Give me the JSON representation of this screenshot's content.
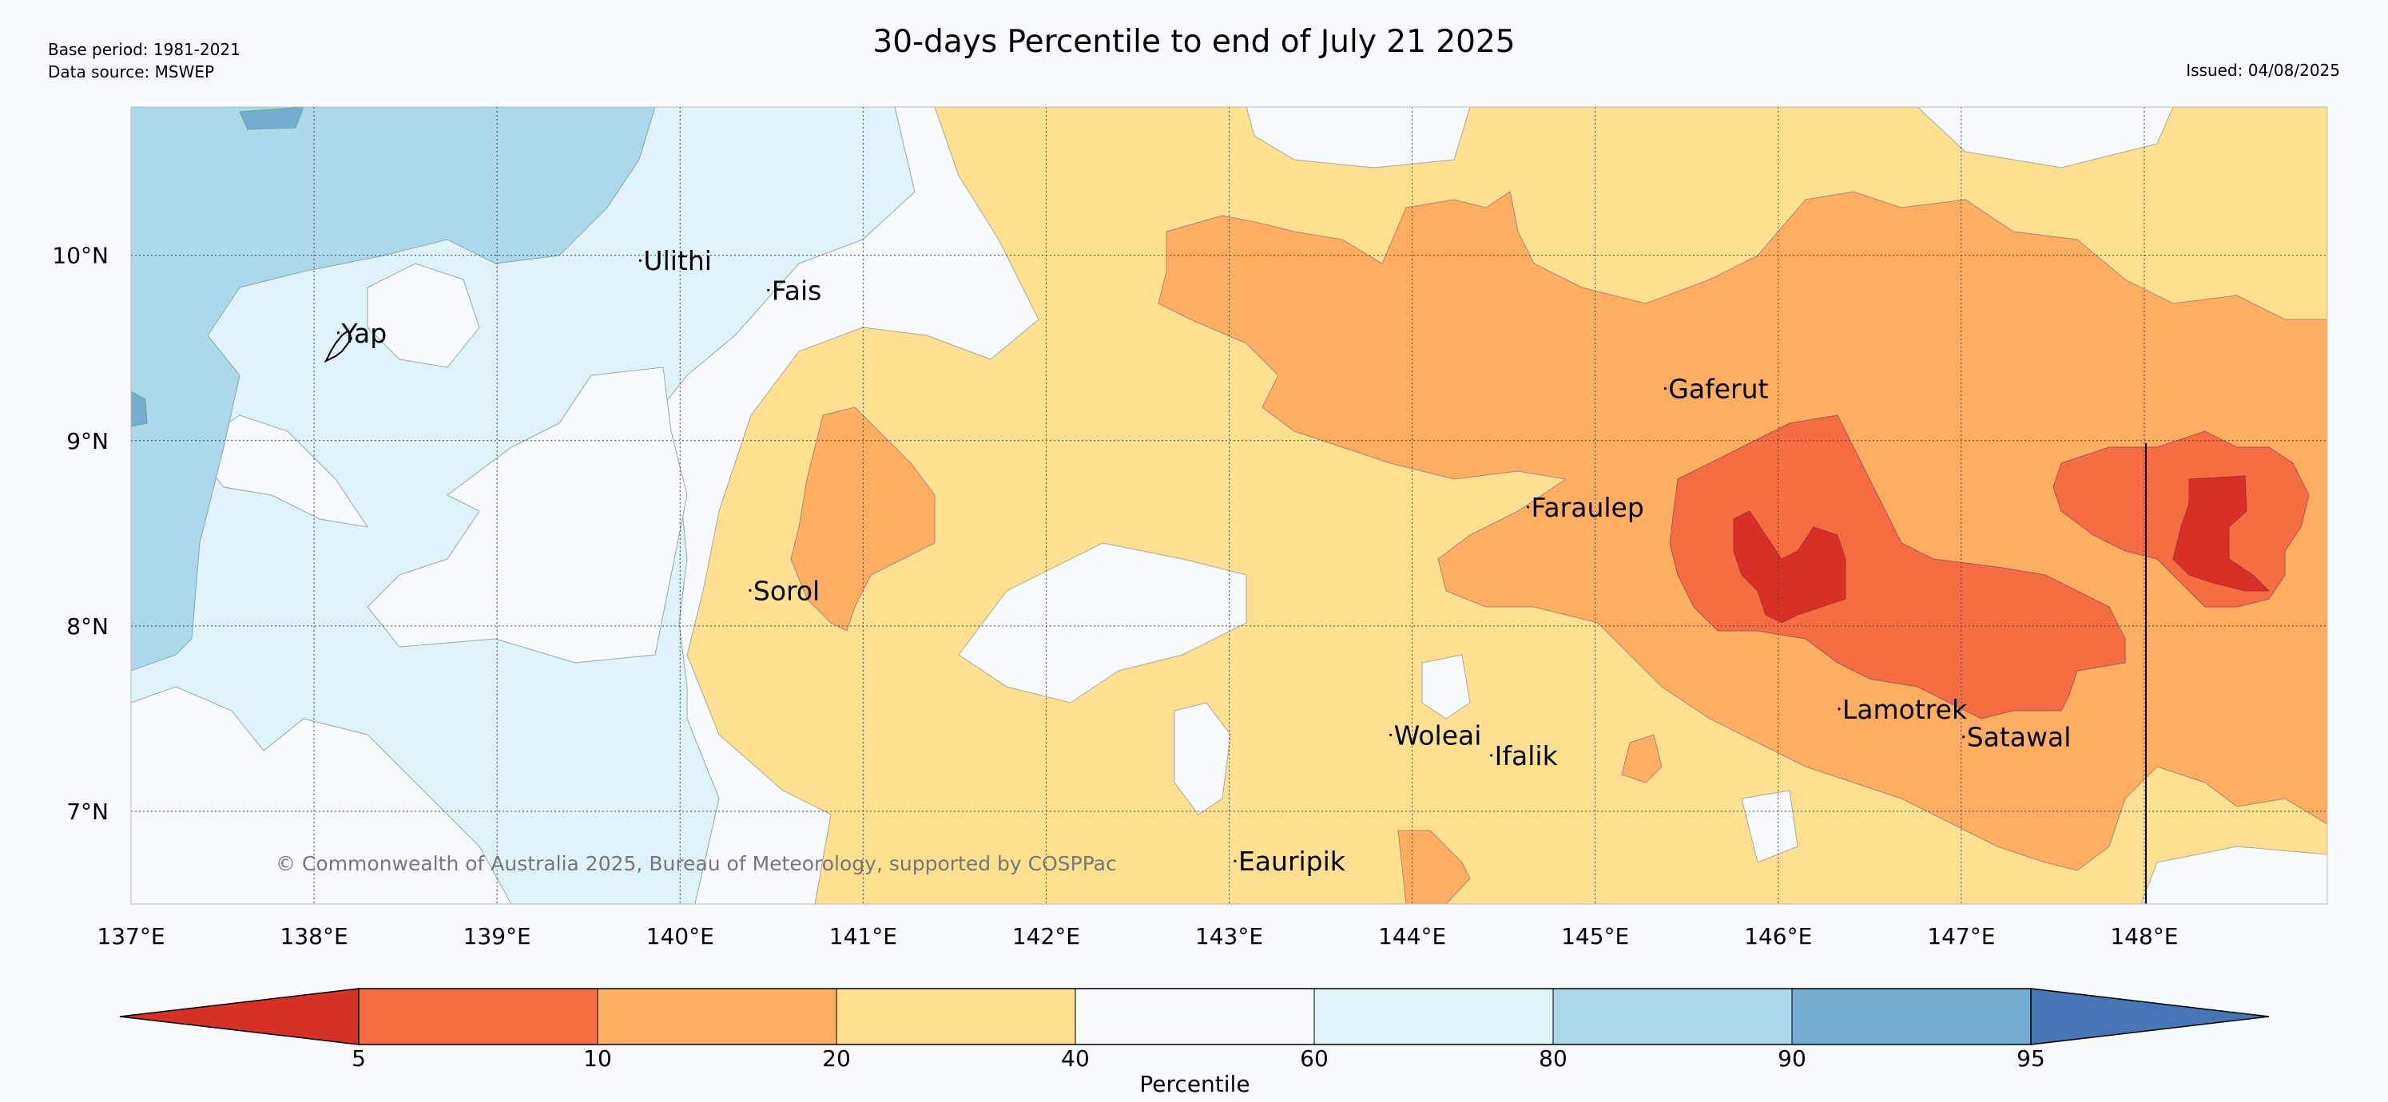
{
  "header": {
    "base_period": "Base period: 1981-2021",
    "data_source": "Data source: MSWEP",
    "title": "30-days Percentile to end of July 21 2025",
    "issued": "Issued: 04/08/2025"
  },
  "map": {
    "lon_range": [
      137,
      149
    ],
    "lat_range": [
      6.5,
      10.8
    ],
    "lon_ticks": [
      {
        "value": 137,
        "label": "137°E"
      },
      {
        "value": 138,
        "label": "138°E"
      },
      {
        "value": 139,
        "label": "139°E"
      },
      {
        "value": 140,
        "label": "140°E"
      },
      {
        "value": 141,
        "label": "141°E"
      },
      {
        "value": 142,
        "label": "142°E"
      },
      {
        "value": 143,
        "label": "143°E"
      },
      {
        "value": 144,
        "label": "144°E"
      },
      {
        "value": 145,
        "label": "145°E"
      },
      {
        "value": 146,
        "label": "146°E"
      },
      {
        "value": 147,
        "label": "147°E"
      },
      {
        "value": 148,
        "label": "148°E"
      }
    ],
    "lat_ticks": [
      {
        "value": 10,
        "label": "10°N"
      },
      {
        "value": 9,
        "label": "9°N"
      },
      {
        "value": 8,
        "label": "8°N"
      },
      {
        "value": 7,
        "label": "7°N"
      }
    ],
    "grid": "dotted",
    "places": [
      {
        "name": "Ulithi",
        "lon": 139.8,
        "lat": 9.92
      },
      {
        "name": "Fais",
        "lon": 140.5,
        "lat": 9.76
      },
      {
        "name": "Yap",
        "lon": 138.15,
        "lat": 9.53
      },
      {
        "name": "Gaferut",
        "lon": 145.4,
        "lat": 9.23
      },
      {
        "name": "Faraulep",
        "lon": 144.65,
        "lat": 8.59
      },
      {
        "name": "Sorol",
        "lon": 140.4,
        "lat": 8.14
      },
      {
        "name": "Woleai",
        "lon": 143.9,
        "lat": 7.36
      },
      {
        "name": "Ifalik",
        "lon": 144.45,
        "lat": 7.25
      },
      {
        "name": "Lamotrek",
        "lon": 146.35,
        "lat": 7.5
      },
      {
        "name": "Satawal",
        "lon": 147.03,
        "lat": 7.35
      },
      {
        "name": "Eauripik",
        "lon": 143.05,
        "lat": 6.68
      }
    ],
    "copyright": "© Commonwealth of Australia 2025, Bureau of Meteorology, supported by COSPPac"
  },
  "colorbar": {
    "label": "Percentile",
    "low_extend_color": "#d73027",
    "high_extend_color": "#4575b4",
    "bins": [
      {
        "from": 5,
        "to": 10,
        "color": "#f46d43"
      },
      {
        "from": 10,
        "to": 20,
        "color": "#fdae61"
      },
      {
        "from": 20,
        "to": 40,
        "color": "#fee090"
      },
      {
        "from": 40,
        "to": 60,
        "color": "#f7fbfd"
      },
      {
        "from": 60,
        "to": 80,
        "color": "#e0f3f8"
      },
      {
        "from": 80,
        "to": 90,
        "color": "#abd9e9"
      },
      {
        "from": 90,
        "to": 95,
        "color": "#74add1"
      }
    ],
    "ticks": [
      {
        "value": "5"
      },
      {
        "value": "10"
      },
      {
        "value": "20"
      },
      {
        "value": "40"
      },
      {
        "value": "60"
      },
      {
        "value": "80"
      },
      {
        "value": "90"
      },
      {
        "value": "95"
      }
    ]
  }
}
